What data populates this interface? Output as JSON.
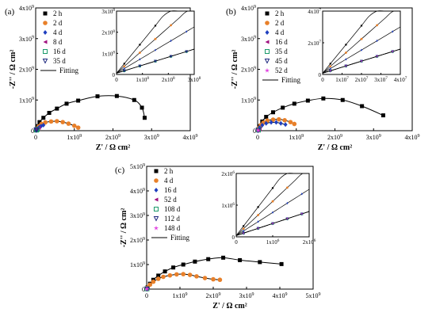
{
  "chart_data": [
    {
      "type": "scatter",
      "panel_label": "(a)",
      "xlabel": "Z' / Ω cm²",
      "ylabel": "-Z'' / Ω cm²",
      "xlim": [
        0,
        4000000000.0
      ],
      "ylim": [
        0,
        4000000000.0
      ],
      "xticks": [
        "0",
        "1x10⁹",
        "2x10⁹",
        "3x10⁹",
        "4x10⁹"
      ],
      "yticks": [
        "0",
        "1x10⁹",
        "2x10⁹",
        "3x10⁹",
        "4x10⁹"
      ],
      "legend": [
        "2 h",
        "2 d",
        "4 d",
        "8 d",
        "16 d",
        "35 d",
        "Fitting"
      ],
      "series": [
        {
          "name": "2 h",
          "color": "#000000",
          "marker": "square",
          "x": [
            20000000.0,
            50000000.0,
            100000000.0,
            200000000.0,
            350000000.0,
            550000000.0,
            800000000.0,
            1100000000.0,
            1600000000.0,
            2100000000.0,
            2550000000.0,
            2750000000.0,
            2820000000.0
          ],
          "y": [
            50000000.0,
            150000000.0,
            280000000.0,
            420000000.0,
            580000000.0,
            720000000.0,
            880000000.0,
            980000000.0,
            1120000000.0,
            1130000000.0,
            1000000000.0,
            750000000.0,
            420000000.0
          ]
        },
        {
          "name": "2 d",
          "color": "#e8802a",
          "marker": "circle",
          "x": [
            30000000.0,
            80000000.0,
            150000000.0,
            250000000.0,
            400000000.0,
            550000000.0,
            700000000.0,
            850000000.0,
            1000000000.0,
            1100000000.0
          ],
          "y": [
            60000000.0,
            140000000.0,
            220000000.0,
            270000000.0,
            300000000.0,
            310000000.0,
            280000000.0,
            230000000.0,
            160000000.0,
            100000000.0
          ]
        },
        {
          "name": "4 d",
          "color": "#1f3fbf",
          "marker": "diamond",
          "x": [
            20000000.0,
            50000000.0,
            90000000.0,
            140000000.0,
            200000000.0
          ],
          "y": [
            30000000.0,
            70000000.0,
            110000000.0,
            150000000.0,
            180000000.0
          ]
        },
        {
          "name": "8 d",
          "color": "#a0107f",
          "marker": "triangle-left",
          "x": [
            20000000.0,
            50000000.0,
            80000000.0
          ],
          "y": [
            30000000.0,
            60000000.0,
            90000000.0
          ]
        },
        {
          "name": "16 d",
          "color": "#1a9a6a",
          "marker": "square-open",
          "x": [
            20000000.0,
            40000000.0
          ],
          "y": [
            20000000.0,
            40000000.0
          ]
        },
        {
          "name": "35 d",
          "color": "#202a80",
          "marker": "triangle-down-open",
          "x": [
            10000000.0,
            30000000.0
          ],
          "y": [
            20000000.0,
            30000000.0
          ]
        }
      ],
      "inset": {
        "xlim": [
          0,
          300000000.0
        ],
        "ylim": [
          0,
          300000000.0
        ],
        "xticks": [
          "0",
          "1x10⁸",
          "2x10⁸",
          "3x10⁸"
        ],
        "yticks": [
          "0",
          "1x10⁸",
          "2x10⁸",
          "3x10⁸"
        ]
      }
    },
    {
      "type": "scatter",
      "panel_label": "(b)",
      "xlabel": "Z' / Ω cm²",
      "ylabel": "-Z'' / Ω cm²",
      "xlim": [
        0,
        4000000000.0
      ],
      "ylim": [
        0,
        4000000000.0
      ],
      "xticks": [
        "0",
        "1x10⁹",
        "2x10⁹",
        "3x10⁹",
        "4x10⁹"
      ],
      "yticks": [
        "0",
        "1x10⁹",
        "2x10⁹",
        "3x10⁹",
        "4x10⁹"
      ],
      "legend": [
        "2 h",
        "2 d",
        "4 d",
        "16 d",
        "35 d",
        "45 d",
        "52 d",
        "Fitting"
      ],
      "series": [
        {
          "name": "2 h",
          "color": "#000000",
          "marker": "square",
          "x": [
            20000000.0,
            60000000.0,
            120000000.0,
            220000000.0,
            400000000.0,
            650000000.0,
            950000000.0,
            1300000000.0,
            1700000000.0,
            2200000000.0,
            2700000000.0,
            3250000000.0
          ],
          "y": [
            50000000.0,
            150000000.0,
            300000000.0,
            450000000.0,
            600000000.0,
            750000000.0,
            880000000.0,
            980000000.0,
            1050000000.0,
            1000000000.0,
            800000000.0,
            500000000.0
          ]
        },
        {
          "name": "2 d",
          "color": "#e8802a",
          "marker": "circle",
          "x": [
            30000000.0,
            80000000.0,
            150000000.0,
            250000000.0,
            400000000.0,
            550000000.0,
            700000000.0,
            850000000.0,
            950000000.0
          ],
          "y": [
            80000000.0,
            180000000.0,
            260000000.0,
            330000000.0,
            360000000.0,
            370000000.0,
            340000000.0,
            280000000.0,
            220000000.0
          ]
        },
        {
          "name": "4 d",
          "color": "#1f3fbf",
          "marker": "diamond",
          "x": [
            50000000.0,
            120000000.0,
            220000000.0,
            350000000.0,
            480000000.0,
            600000000.0,
            720000000.0
          ],
          "y": [
            100000000.0,
            180000000.0,
            240000000.0,
            270000000.0,
            270000000.0,
            240000000.0,
            200000000.0
          ]
        },
        {
          "name": "16 d",
          "color": "#a0107f",
          "marker": "triangle-left",
          "x": [
            20000000.0,
            50000000.0
          ],
          "y": [
            20000000.0,
            40000000.0
          ]
        },
        {
          "name": "35 d",
          "color": "#1a9a6a",
          "marker": "square-open",
          "x": [
            20000000.0
          ],
          "y": [
            20000000.0
          ]
        },
        {
          "name": "45 d",
          "color": "#202a80",
          "marker": "triangle-down-open",
          "x": [
            10000000.0
          ],
          "y": [
            10000000.0
          ]
        },
        {
          "name": "52 d",
          "color": "#e040e0",
          "marker": "star",
          "x": [
            10000000.0
          ],
          "y": [
            10000000.0
          ]
        }
      ],
      "inset": {
        "xlim": [
          0,
          40000000.0
        ],
        "ylim": [
          0,
          40000000.0
        ],
        "xticks": [
          "0",
          "1x10⁷",
          "2x10⁷",
          "3x10⁷",
          "4x10⁷"
        ],
        "yticks": [
          "0",
          "2x10⁷",
          "4x10⁷"
        ]
      }
    },
    {
      "type": "scatter",
      "panel_label": "(c)",
      "xlabel": "Z' / Ω cm²",
      "ylabel": "-Z'' / Ω cm²",
      "xlim": [
        0,
        5000000000.0
      ],
      "ylim": [
        0,
        5000000000.0
      ],
      "xticks": [
        "0",
        "1x10⁹",
        "2x10⁹",
        "3x10⁹",
        "4x10⁹",
        "5x10⁹"
      ],
      "yticks": [
        "0",
        "1x10⁹",
        "2x10⁹",
        "3x10⁹",
        "4x10⁹",
        "5x10⁹"
      ],
      "legend": [
        "2 h",
        "4 d",
        "16 d",
        "52 d",
        "108 d",
        "112 d",
        "148 d",
        "Fitting"
      ],
      "series": [
        {
          "name": "2 h",
          "color": "#000000",
          "marker": "square",
          "x": [
            30000000.0,
            100000000.0,
            200000000.0,
            350000000.0,
            550000000.0,
            800000000.0,
            1100000000.0,
            1450000000.0,
            1850000000.0,
            2300000000.0,
            2800000000.0,
            3400000000.0,
            4050000000.0
          ],
          "y": [
            80000000.0,
            220000000.0,
            380000000.0,
            550000000.0,
            720000000.0,
            880000000.0,
            1000000000.0,
            1120000000.0,
            1220000000.0,
            1280000000.0,
            1180000000.0,
            1100000000.0,
            1020000000.0
          ]
        },
        {
          "name": "4 d",
          "color": "#e8802a",
          "marker": "circle",
          "x": [
            30000000.0,
            100000000.0,
            200000000.0,
            350000000.0,
            500000000.0,
            700000000.0,
            900000000.0,
            1100000000.0,
            1300000000.0,
            1500000000.0,
            1750000000.0,
            2000000000.0,
            2200000000.0
          ],
          "y": [
            70000000.0,
            180000000.0,
            300000000.0,
            420000000.0,
            500000000.0,
            560000000.0,
            600000000.0,
            610000000.0,
            580000000.0,
            520000000.0,
            450000000.0,
            400000000.0,
            380000000.0
          ]
        },
        {
          "name": "16 d",
          "color": "#1f3fbf",
          "marker": "diamond",
          "x": [
            20000000.0,
            40000000.0
          ],
          "y": [
            20000000.0,
            30000000.0
          ]
        },
        {
          "name": "52 d",
          "color": "#a0107f",
          "marker": "triangle-left",
          "x": [
            10000000.0
          ],
          "y": [
            10000000.0
          ]
        },
        {
          "name": "108 d",
          "color": "#1a9a6a",
          "marker": "square-open",
          "x": [
            10000000.0
          ],
          "y": [
            10000000.0
          ]
        },
        {
          "name": "112 d",
          "color": "#202a80",
          "marker": "triangle-down-open",
          "x": [
            10000000.0
          ],
          "y": [
            10000000.0
          ]
        },
        {
          "name": "148 d",
          "color": "#e040e0",
          "marker": "star",
          "x": [
            5000000.0
          ],
          "y": [
            5000000.0
          ]
        }
      ],
      "inset": {
        "xlim": [
          0,
          2000000.0
        ],
        "ylim": [
          0,
          2000000.0
        ],
        "xticks": [
          "0",
          "1x10⁶",
          "2x10⁶"
        ],
        "yticks": [
          "0",
          "1x10⁶",
          "2x10⁶"
        ]
      }
    }
  ]
}
